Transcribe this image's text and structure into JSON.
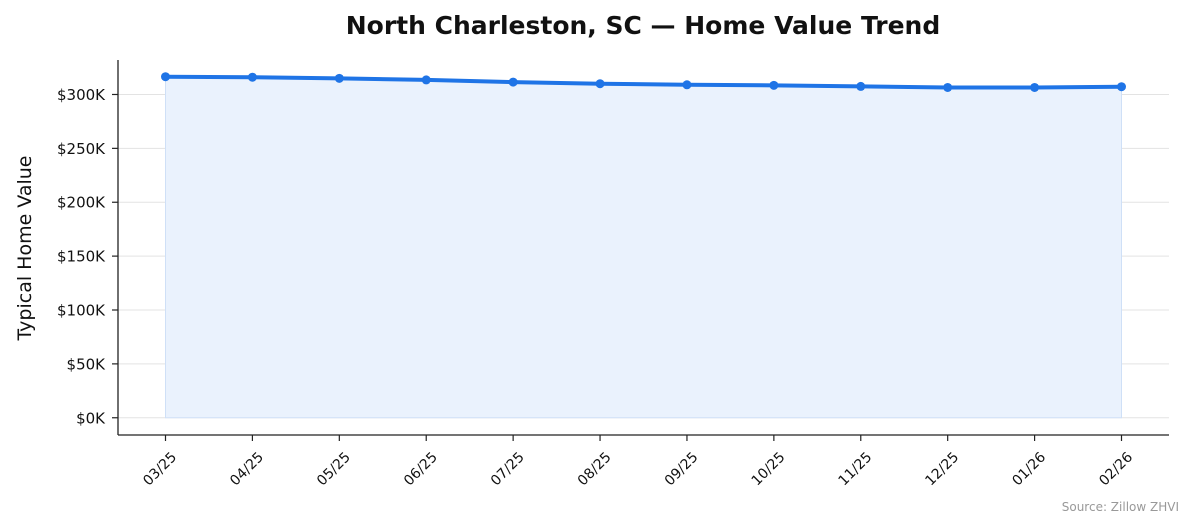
{
  "chart_data": {
    "type": "area",
    "title": "North Charleston, SC — Home Value Trend",
    "xlabel": "",
    "ylabel": "Typical Home Value",
    "categories": [
      "03/25",
      "04/25",
      "05/25",
      "06/25",
      "07/25",
      "08/25",
      "09/25",
      "10/25",
      "11/25",
      "12/25",
      "01/26",
      "02/26"
    ],
    "series": [
      {
        "values": [
          316500,
          316000,
          315000,
          313500,
          311500,
          310000,
          309000,
          308500,
          307500,
          306500,
          306500,
          307200
        ]
      }
    ],
    "y_ticks": [
      0,
      50000,
      100000,
      150000,
      200000,
      250000,
      300000
    ],
    "y_tick_labels": [
      "$0K",
      "$50K",
      "$100K",
      "$150K",
      "$200K",
      "$250K",
      "$300K"
    ],
    "ylim": [
      -16000,
      332000
    ],
    "grid": "horizontal",
    "source_note": "Source: Zillow ZHVI",
    "colors": {
      "line": "#1f74e6",
      "fill": "#eaf2fd",
      "fill_edge": "#cfe0f7",
      "grid": "#e3e3e3",
      "axis": "#222222"
    }
  }
}
